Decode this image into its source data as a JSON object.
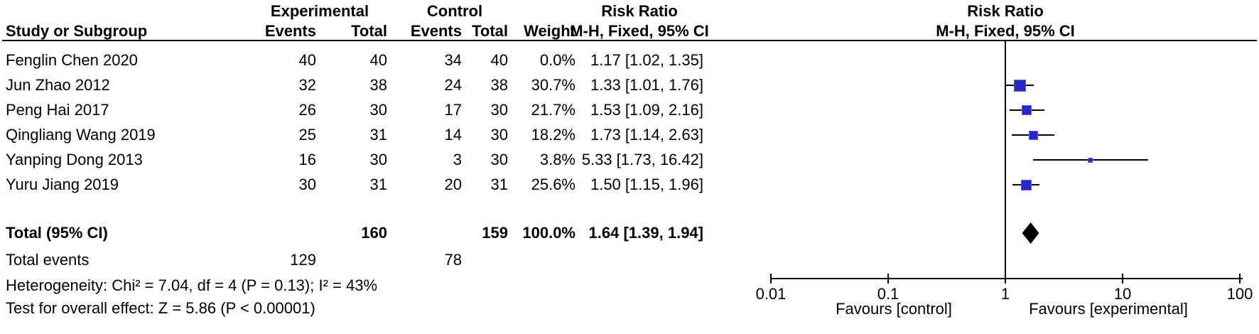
{
  "header": {
    "study_col": "Study or Subgroup",
    "group_experimental": "Experimental",
    "group_control": "Control",
    "events": "Events",
    "total": "Total",
    "weight": "Weight",
    "rr_title": "Risk Ratio",
    "rr_method": "M-H, Fixed, 95% CI",
    "plot_rr_title": "Risk Ratio",
    "plot_rr_method": "M-H, Fixed, 95% CI"
  },
  "chart_data": {
    "type": "forest",
    "effect_measure": "Risk Ratio",
    "method": "Mantel-Haenszel, Fixed effect, 95% CI",
    "x_scale": "log",
    "xlim": [
      0.01,
      100
    ],
    "studies": [
      {
        "study": "Fenglin Chen 2020",
        "exp_events": "40",
        "exp_total": "40",
        "ctrl_events": "34",
        "ctrl_total": "40",
        "weight": "0.0%",
        "rr_text": "1.17 [1.02, 1.35]",
        "rr": 1.17,
        "ci_low": 1.02,
        "ci_high": 1.35,
        "plotted": false
      },
      {
        "study": "Jun Zhao 2012",
        "exp_events": "32",
        "exp_total": "38",
        "ctrl_events": "24",
        "ctrl_total": "38",
        "weight": "30.7%",
        "rr_text": "1.33 [1.01, 1.76]",
        "rr": 1.33,
        "ci_low": 1.01,
        "ci_high": 1.76,
        "plotted": true
      },
      {
        "study": "Peng Hai 2017",
        "exp_events": "26",
        "exp_total": "30",
        "ctrl_events": "17",
        "ctrl_total": "30",
        "weight": "21.7%",
        "rr_text": "1.53 [1.09, 2.16]",
        "rr": 1.53,
        "ci_low": 1.09,
        "ci_high": 2.16,
        "plotted": true
      },
      {
        "study": "Qingliang Wang 2019",
        "exp_events": "25",
        "exp_total": "31",
        "ctrl_events": "14",
        "ctrl_total": "30",
        "weight": "18.2%",
        "rr_text": "1.73 [1.14, 2.63]",
        "rr": 1.73,
        "ci_low": 1.14,
        "ci_high": 2.63,
        "plotted": true
      },
      {
        "study": "Yanping Dong 2013",
        "exp_events": "16",
        "exp_total": "30",
        "ctrl_events": "3",
        "ctrl_total": "30",
        "weight": "3.8%",
        "rr_text": "5.33 [1.73, 16.42]",
        "rr": 5.33,
        "ci_low": 1.73,
        "ci_high": 16.42,
        "plotted": true
      },
      {
        "study": "Yuru Jiang 2019",
        "exp_events": "30",
        "exp_total": "31",
        "ctrl_events": "20",
        "ctrl_total": "31",
        "weight": "25.6%",
        "rr_text": "1.50 [1.15, 1.96]",
        "rr": 1.5,
        "ci_low": 1.15,
        "ci_high": 1.96,
        "plotted": true
      }
    ],
    "total": {
      "label": "Total (95% CI)",
      "exp_total": "160",
      "ctrl_total": "159",
      "weight": "100.0%",
      "rr_text": "1.64 [1.39, 1.94]",
      "rr": 1.64,
      "ci_low": 1.39,
      "ci_high": 1.94
    },
    "total_events": {
      "label": "Total events",
      "exp": "129",
      "ctrl": "78"
    },
    "heterogeneity": "Heterogeneity: Chi² = 7.04, df = 4 (P = 0.13); I² = 43%",
    "overall_effect": "Test for overall effect: Z = 5.86 (P < 0.00001)",
    "axis": {
      "ticks": [
        0.01,
        0.1,
        1,
        10,
        100
      ],
      "tick_labels": [
        "0.01",
        "0.1",
        "1",
        "10",
        "100"
      ],
      "favours_left": "Favours [control]",
      "favours_right": "Favours [experimental]"
    },
    "colors": {
      "marker_fill": "#2727c4",
      "marker_border": "#5b5bf0",
      "diamond": "#000000",
      "line": "#000000"
    }
  }
}
